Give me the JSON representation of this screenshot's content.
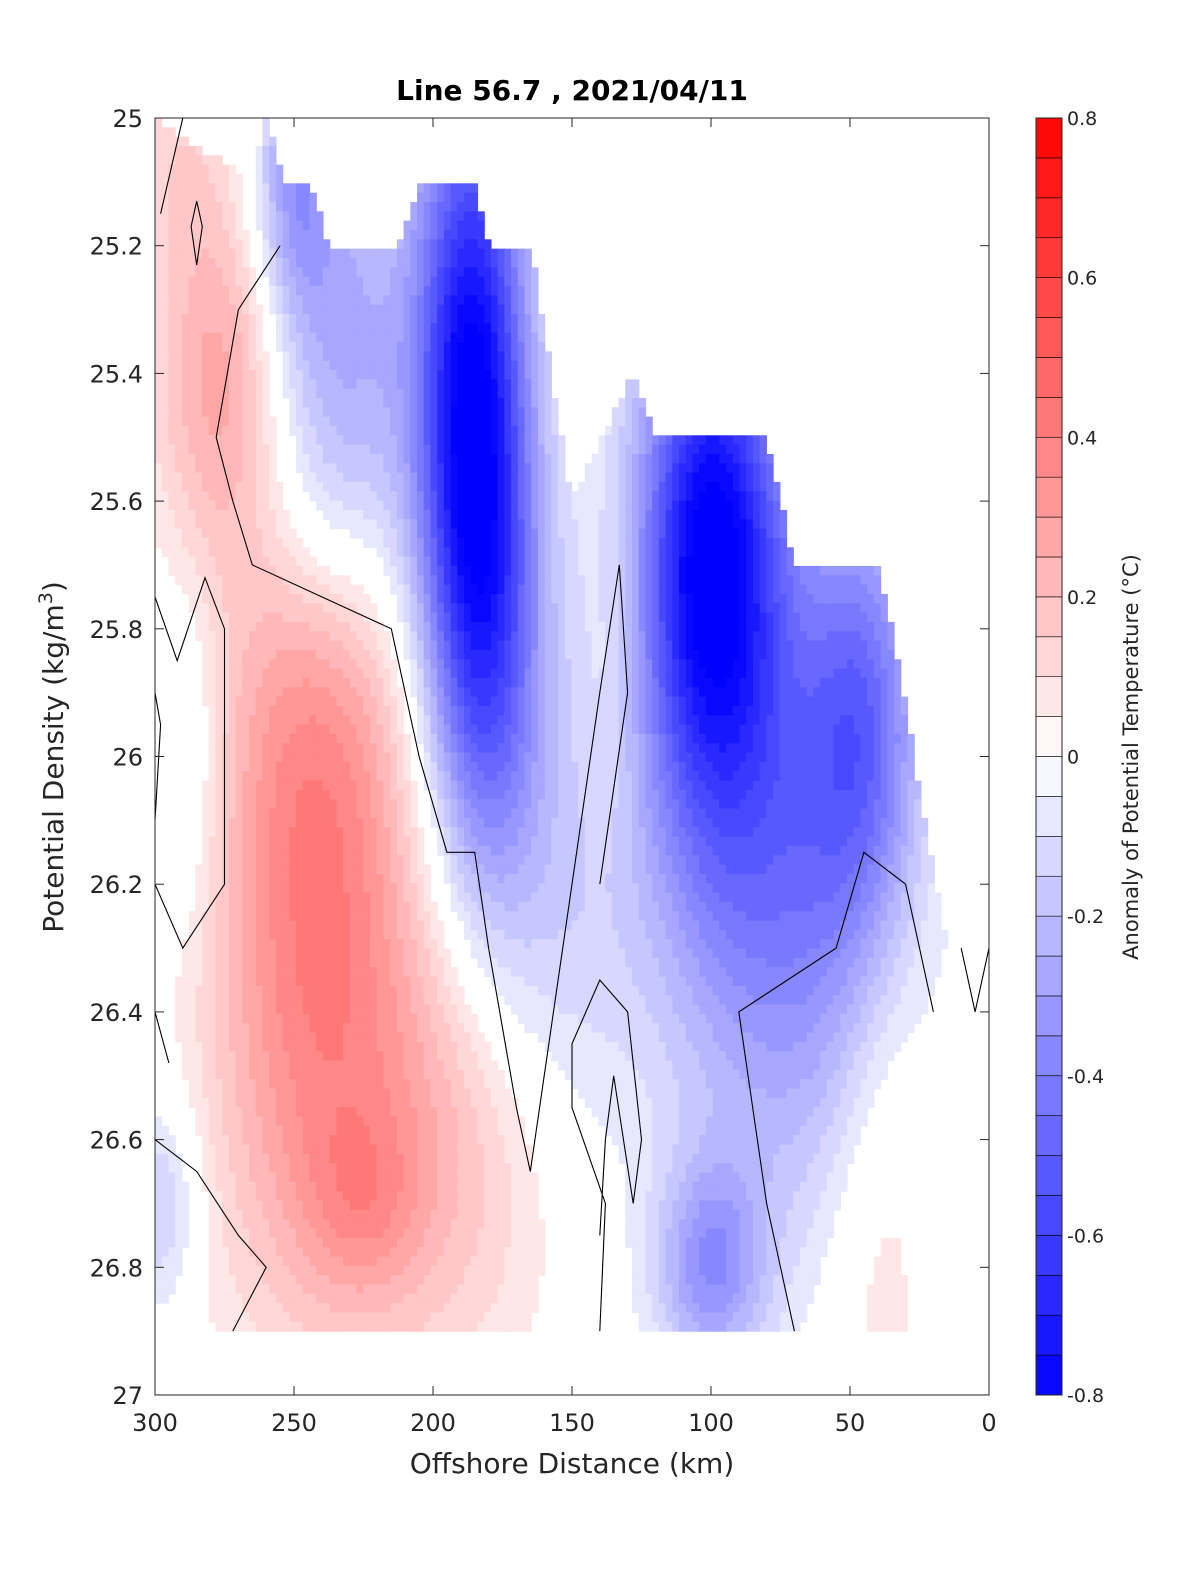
{
  "chart_data": {
    "type": "heatmap",
    "subtype": "filled-contour",
    "title": "Line 56.7 , 2021/04/11",
    "xlabel": "Offshore Distance (km)",
    "ylabel_main": "Potential Density (kg/m",
    "ylabel_sup": "3",
    "ylabel_close": ")",
    "xlim": [
      300,
      0
    ],
    "x_reversed": true,
    "ylim": [
      25,
      27
    ],
    "y_reversed": true,
    "x_ticks": [
      300,
      250,
      200,
      150,
      100,
      50,
      0
    ],
    "y_ticks": [
      25,
      25.2,
      25.4,
      25.6,
      25.8,
      26,
      26.2,
      26.4,
      26.6,
      26.8,
      27
    ],
    "y_tick_labels": [
      "25",
      "25.2",
      "25.4",
      "25.6",
      "25.8",
      "26",
      "26.2",
      "26.4",
      "26.6",
      "26.8",
      "27"
    ],
    "colorbar": {
      "label": "Anomaly of Potential Temperature (°C)",
      "clim": [
        -0.8,
        0.8
      ],
      "step": 0.05,
      "ticks": [
        -0.8,
        -0.6,
        -0.4,
        -0.2,
        0,
        0.2,
        0.4,
        0.6,
        0.8
      ],
      "tick_labels": [
        "-0.8",
        "-0.6",
        "-0.4",
        "-0.2",
        "0",
        "0.2",
        "0.4",
        "0.6",
        "0.8"
      ],
      "low_color": "#0000ff",
      "mid_color": "#ffffff",
      "high_color": "#ff0000"
    },
    "data_bottom_density": 26.9,
    "data_top_density": [
      [
        300,
        25.0
      ],
      [
        265,
        25.1
      ],
      [
        260,
        25.0
      ],
      [
        253,
        25.1
      ],
      [
        245,
        25.1
      ],
      [
        237,
        25.2
      ],
      [
        212,
        25.2
      ],
      [
        205,
        25.1
      ],
      [
        185,
        25.1
      ],
      [
        180,
        25.2
      ],
      [
        165,
        25.2
      ],
      [
        150,
        25.6
      ],
      [
        128,
        25.4
      ],
      [
        120,
        25.5
      ],
      [
        80,
        25.5
      ],
      [
        70,
        25.7
      ],
      [
        40,
        25.7
      ],
      [
        35,
        25.8
      ],
      [
        15,
        26.3
      ],
      [
        10,
        26.4
      ]
    ],
    "anomaly_field": [
      {
        "x": 275,
        "y": 25.4,
        "value": 0.3,
        "sx": 18,
        "sy": 0.22
      },
      {
        "x": 292,
        "y": 25.05,
        "value": 0.1,
        "sx": 14,
        "sy": 0.12
      },
      {
        "x": 243,
        "y": 26.15,
        "value": 0.32,
        "sx": 26,
        "sy": 0.35
      },
      {
        "x": 240,
        "y": 25.9,
        "value": 0.12,
        "sx": 25,
        "sy": 0.2
      },
      {
        "x": 230,
        "y": 26.6,
        "value": 0.2,
        "sx": 35,
        "sy": 0.3
      },
      {
        "x": 225,
        "y": 26.7,
        "value": 0.12,
        "sx": 15,
        "sy": 0.1
      },
      {
        "x": 185,
        "y": 26.6,
        "value": 0.1,
        "sx": 25,
        "sy": 0.25
      },
      {
        "x": 135,
        "y": 25.9,
        "value": 0.06,
        "sx": 7,
        "sy": 0.18
      },
      {
        "x": 40,
        "y": 26.6,
        "value": 0.12,
        "sx": 14,
        "sy": 0.38
      },
      {
        "x": 186,
        "y": 25.4,
        "value": -0.72,
        "sx": 14,
        "sy": 0.35
      },
      {
        "x": 180,
        "y": 25.85,
        "value": -0.4,
        "sx": 16,
        "sy": 0.3
      },
      {
        "x": 235,
        "y": 25.4,
        "value": -0.3,
        "sx": 22,
        "sy": 0.3
      },
      {
        "x": 250,
        "y": 25.1,
        "value": -0.25,
        "sx": 10,
        "sy": 0.15
      },
      {
        "x": 100,
        "y": 25.65,
        "value": -0.7,
        "sx": 18,
        "sy": 0.28
      },
      {
        "x": 90,
        "y": 26.05,
        "value": -0.35,
        "sx": 28,
        "sy": 0.35
      },
      {
        "x": 45,
        "y": 25.95,
        "value": -0.4,
        "sx": 15,
        "sy": 0.25
      },
      {
        "x": 60,
        "y": 26.35,
        "value": -0.18,
        "sx": 25,
        "sy": 0.3
      },
      {
        "x": 155,
        "y": 26.3,
        "value": -0.12,
        "sx": 20,
        "sy": 0.25
      },
      {
        "x": 100,
        "y": 26.8,
        "value": -0.32,
        "sx": 14,
        "sy": 0.12
      },
      {
        "x": 290,
        "y": 26.0,
        "value": -0.12,
        "sx": 10,
        "sy": 0.2
      },
      {
        "x": 298,
        "y": 26.7,
        "value": -0.18,
        "sx": 10,
        "sy": 0.12
      }
    ],
    "zero_contours": [
      [
        [
          298,
          25.15
        ],
        [
          290,
          25.0
        ]
      ],
      [
        [
          255,
          25.2
        ],
        [
          270,
          25.3
        ],
        [
          278,
          25.5
        ],
        [
          272,
          25.6
        ],
        [
          265,
          25.7
        ],
        [
          240,
          25.75
        ],
        [
          215,
          25.8
        ],
        [
          205,
          26.0
        ],
        [
          195,
          26.15
        ],
        [
          185,
          26.15
        ],
        [
          180,
          26.3
        ],
        [
          170,
          26.55
        ],
        [
          165,
          26.65
        ],
        [
          160,
          26.5
        ],
        [
          150,
          26.2
        ],
        [
          140,
          25.9
        ],
        [
          133,
          25.7
        ],
        [
          130,
          25.9
        ],
        [
          140,
          26.2
        ]
      ],
      [
        [
          300,
          25.75
        ],
        [
          292,
          25.85
        ],
        [
          282,
          25.72
        ],
        [
          275,
          25.8
        ],
        [
          275,
          26.2
        ],
        [
          290,
          26.3
        ],
        [
          300,
          26.2
        ]
      ],
      [
        [
          287,
          25.17
        ],
        [
          285,
          25.23
        ],
        [
          283,
          25.17
        ],
        [
          285,
          25.13
        ],
        [
          287,
          25.17
        ]
      ],
      [
        [
          300,
          26.6
        ],
        [
          285,
          26.65
        ],
        [
          270,
          26.75
        ],
        [
          260,
          26.8
        ],
        [
          272,
          26.9
        ]
      ],
      [
        [
          300,
          26.4
        ],
        [
          295,
          26.48
        ]
      ],
      [
        [
          140,
          26.9
        ],
        [
          138,
          26.7
        ],
        [
          150,
          26.55
        ],
        [
          150,
          26.45
        ],
        [
          140,
          26.35
        ],
        [
          130,
          26.4
        ],
        [
          125,
          26.6
        ],
        [
          128,
          26.7
        ],
        [
          135,
          26.5
        ],
        [
          138,
          26.6
        ],
        [
          140,
          26.75
        ]
      ],
      [
        [
          70,
          26.9
        ],
        [
          80,
          26.7
        ],
        [
          90,
          26.4
        ],
        [
          55,
          26.3
        ],
        [
          45,
          26.15
        ],
        [
          30,
          26.2
        ],
        [
          20,
          26.4
        ]
      ],
      [
        [
          10,
          26.3
        ],
        [
          5,
          26.4
        ],
        [
          0,
          26.3
        ]
      ],
      [
        [
          300,
          26.1
        ],
        [
          298,
          25.95
        ],
        [
          300,
          25.9
        ]
      ]
    ]
  }
}
